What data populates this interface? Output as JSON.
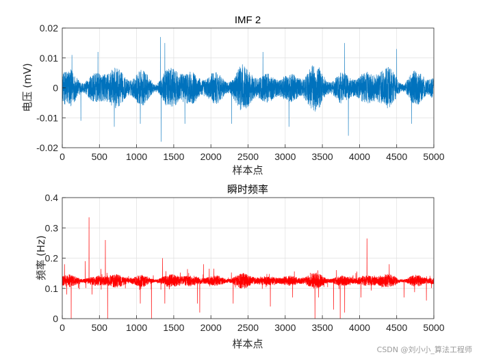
{
  "chart_data": [
    {
      "type": "line",
      "title": "IMF 2",
      "xlabel": "样本点",
      "ylabel": "电压 (mV)",
      "xlim": [
        0,
        5000
      ],
      "ylim": [
        -0.02,
        0.02
      ],
      "xticks": [
        0,
        500,
        1000,
        1500,
        2000,
        2500,
        3000,
        3500,
        4000,
        4500,
        5000
      ],
      "yticks": [
        -0.02,
        -0.01,
        0,
        0.01,
        0.02
      ],
      "ytick_labels": [
        "-0.02",
        "-0.01",
        "0",
        "0.01",
        "0.02"
      ],
      "grid": true,
      "color": "#0072BD",
      "series": [
        {
          "n_points": 5000,
          "baseline": 0,
          "typical_amplitude": 0.006,
          "spikes": [
            {
              "x": 130,
              "y": 0.011
            },
            {
              "x": 250,
              "y": -0.011
            },
            {
              "x": 480,
              "y": 0.012
            },
            {
              "x": 700,
              "y": -0.013
            },
            {
              "x": 1050,
              "y": -0.012
            },
            {
              "x": 1320,
              "y": 0.017
            },
            {
              "x": 1330,
              "y": -0.018
            },
            {
              "x": 1380,
              "y": 0.015
            },
            {
              "x": 1650,
              "y": -0.012
            },
            {
              "x": 2280,
              "y": -0.012
            },
            {
              "x": 2700,
              "y": 0.012
            },
            {
              "x": 3050,
              "y": -0.013
            },
            {
              "x": 3800,
              "y": 0.015
            },
            {
              "x": 3850,
              "y": -0.016
            },
            {
              "x": 4500,
              "y": 0.013
            },
            {
              "x": 4700,
              "y": -0.012
            }
          ]
        }
      ]
    },
    {
      "type": "line",
      "title": "瞬时频率",
      "xlabel": "样本点",
      "ylabel": "频率 (Hz)",
      "xlim": [
        0,
        5000
      ],
      "ylim": [
        0,
        0.4
      ],
      "xticks": [
        0,
        500,
        1000,
        1500,
        2000,
        2500,
        3000,
        3500,
        4000,
        4500,
        5000
      ],
      "yticks": [
        0,
        0.1,
        0.2,
        0.3,
        0.4
      ],
      "ytick_labels": [
        "0",
        "0.1",
        "0.2",
        "0.3",
        "0.4"
      ],
      "grid": true,
      "color": "#FF0000",
      "series": [
        {
          "n_points": 5000,
          "baseline": 0.125,
          "typical_amplitude": 0.02,
          "spikes": [
            {
              "x": 30,
              "y": 0.18
            },
            {
              "x": 60,
              "y": 0.08
            },
            {
              "x": 120,
              "y": 0.0
            },
            {
              "x": 310,
              "y": 0.19
            },
            {
              "x": 360,
              "y": 0.335
            },
            {
              "x": 400,
              "y": 0.08
            },
            {
              "x": 580,
              "y": 0.26
            },
            {
              "x": 610,
              "y": 0.0
            },
            {
              "x": 1050,
              "y": 0.05
            },
            {
              "x": 1200,
              "y": 0.0
            },
            {
              "x": 1350,
              "y": 0.2
            },
            {
              "x": 1380,
              "y": 0.05
            },
            {
              "x": 1820,
              "y": 0.05
            },
            {
              "x": 1850,
              "y": 0.02
            },
            {
              "x": 1900,
              "y": 0.18
            },
            {
              "x": 2300,
              "y": 0.05
            },
            {
              "x": 2800,
              "y": 0.04
            },
            {
              "x": 3100,
              "y": 0.07
            },
            {
              "x": 3400,
              "y": 0.0
            },
            {
              "x": 3450,
              "y": 0.07
            },
            {
              "x": 3650,
              "y": 0.03
            },
            {
              "x": 3740,
              "y": 0.0
            },
            {
              "x": 3800,
              "y": 0.02
            },
            {
              "x": 4020,
              "y": 0.07
            },
            {
              "x": 4100,
              "y": 0.265
            },
            {
              "x": 4400,
              "y": 0.18
            },
            {
              "x": 4600,
              "y": 0.07
            },
            {
              "x": 4900,
              "y": 0.06
            }
          ]
        }
      ]
    }
  ],
  "watermark": "CSDN @刘小小_算法工程师"
}
